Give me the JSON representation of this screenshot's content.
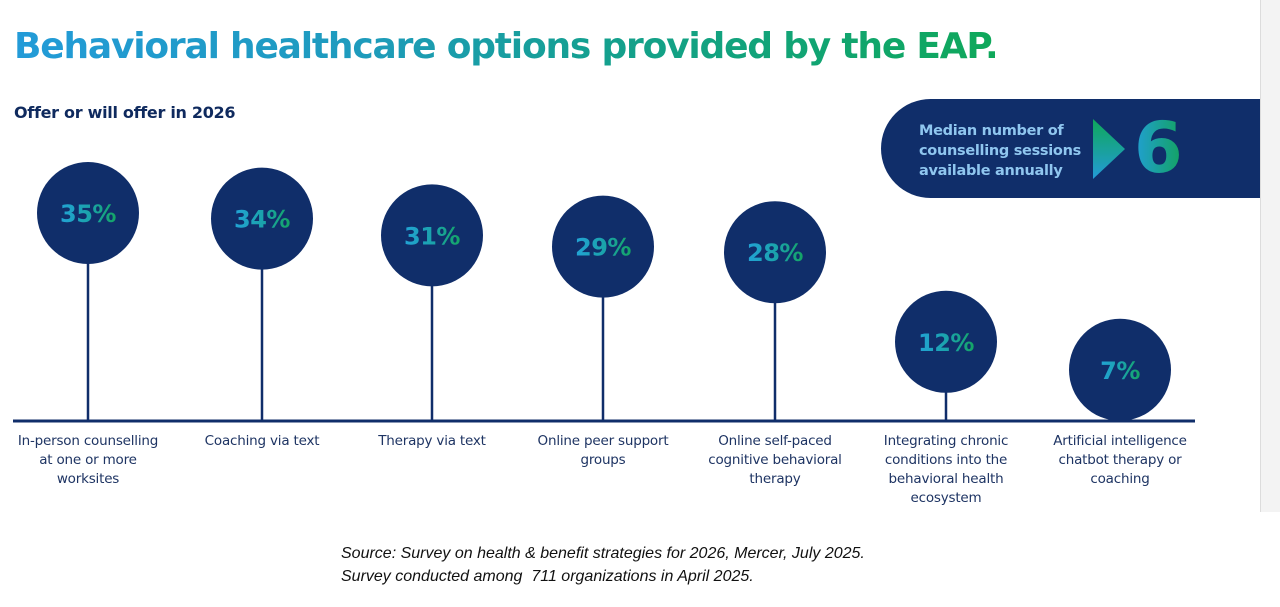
{
  "header": {
    "title": "Behavioral healthcare options provided by the EAP.",
    "subtitle": "Offer or will offer in 2026"
  },
  "callout": {
    "text": "Median number of counselling sessions available annually",
    "lines": [
      "Median number of",
      "counselling sessions",
      "available annually"
    ],
    "value": "6",
    "icon": "play-arrow-icon"
  },
  "colors": {
    "navy": "#102e6a",
    "title_gradient_start": "#239bd8",
    "title_gradient_end": "#0fa85a",
    "label_text": "#1e3463"
  },
  "chart_data": {
    "type": "bar",
    "style": "lollipop",
    "title": "Behavioral healthcare options provided by the EAP.",
    "subtitle": "Offer or will offer in 2026",
    "xlabel": "",
    "ylabel": "",
    "unit": "%",
    "ylim": [
      0,
      40
    ],
    "grid": false,
    "categories": [
      "In-person counselling at one or more worksites",
      "Coaching via text",
      "Therapy via text",
      "Online peer support groups",
      "Online self-paced cognitive behavioral therapy",
      "Integrating chronic conditions into the behavioral health ecosystem",
      "Artificial intelligence chatbot therapy or coaching"
    ],
    "category_lines": [
      [
        "In-person counselling",
        "at one or more",
        "worksites"
      ],
      [
        "Coaching via text"
      ],
      [
        "Therapy via text"
      ],
      [
        "Online peer support",
        "groups"
      ],
      [
        "Online self-paced",
        "cognitive behavioral",
        "therapy"
      ],
      [
        "Integrating chronic",
        "conditions into the",
        "behavioral health",
        "ecosystem"
      ],
      [
        "Artificial intelligence",
        "chatbot therapy or",
        "coaching"
      ]
    ],
    "values": [
      35,
      34,
      31,
      29,
      28,
      12,
      7
    ],
    "labels": [
      "35%",
      "34%",
      "31%",
      "29%",
      "28%",
      "12%",
      "7%"
    ]
  },
  "footer": {
    "source_line1": "Source: Survey on health & benefit strategies for 2026, Mercer, July 2025.",
    "source_line2": "Survey conducted among  711 organizations in April 2025."
  }
}
